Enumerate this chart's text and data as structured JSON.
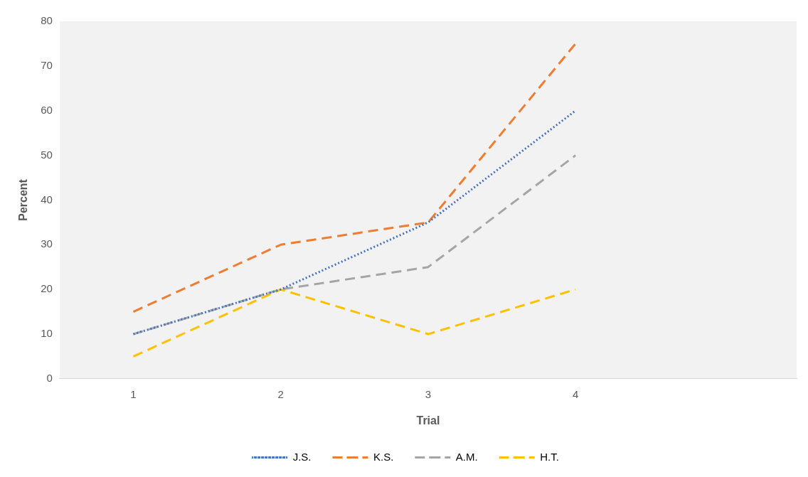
{
  "chart_data": {
    "type": "line",
    "xlabel": "Trial",
    "ylabel": "Percent",
    "categories": [
      "1",
      "2",
      "3",
      "4",
      null
    ],
    "ylim": [
      0,
      80
    ],
    "yticks": [
      0,
      10,
      20,
      30,
      40,
      50,
      60,
      70,
      80
    ],
    "grid": false,
    "legend": "bottom",
    "marker": "none",
    "series": [
      {
        "name": "J.S.",
        "color": "#4472c4",
        "line_style": "dotted",
        "values": [
          10,
          20,
          35,
          60,
          null
        ]
      },
      {
        "name": "K.S.",
        "color": "#ed7d31",
        "line_style": "dashed",
        "values": [
          15,
          30,
          35,
          75,
          null
        ]
      },
      {
        "name": "A.M.",
        "color": "#a5a5a5",
        "line_style": "dashed",
        "values": [
          10,
          20,
          25,
          50,
          null
        ]
      },
      {
        "name": "H.T.",
        "color": "#ffc000",
        "line_style": "dashed",
        "values": [
          5,
          20,
          10,
          20,
          null
        ]
      }
    ]
  }
}
